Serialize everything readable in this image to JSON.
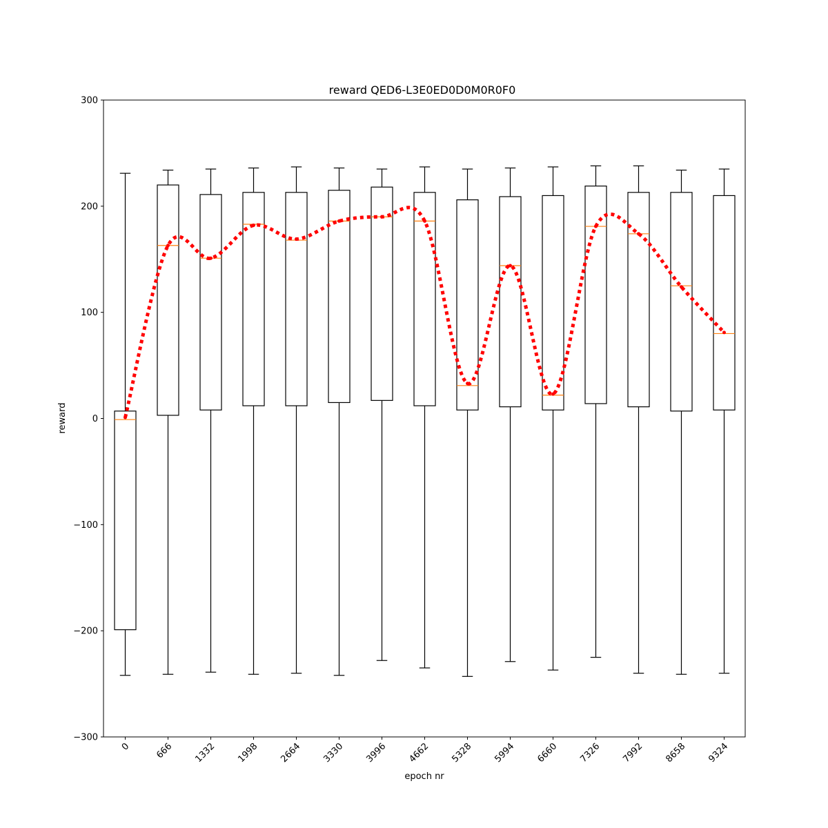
{
  "chart_data": {
    "type": "box",
    "title": "reward QED6-L3E0ED0D0M0R0F0",
    "xlabel": "epoch nr",
    "ylabel": "reward",
    "ylim": [
      -300,
      300
    ],
    "yticks": [
      -300,
      -200,
      -100,
      0,
      100,
      200,
      300
    ],
    "ytick_labels": [
      "−300",
      "−200",
      "−100",
      "0",
      "100",
      "200",
      "300"
    ],
    "categories": [
      "0",
      "666",
      "1332",
      "1998",
      "2664",
      "3330",
      "3996",
      "4662",
      "5328",
      "5994",
      "6660",
      "7326",
      "7992",
      "8658",
      "9324"
    ],
    "boxes": [
      {
        "whisker_low": -242,
        "q1": -199,
        "median": -1,
        "q3": 7,
        "whisker_high": 231
      },
      {
        "whisker_low": -241,
        "q1": 3,
        "median": 163,
        "q3": 220,
        "whisker_high": 234
      },
      {
        "whisker_low": -239,
        "q1": 8,
        "median": 151,
        "q3": 211,
        "whisker_high": 235
      },
      {
        "whisker_low": -241,
        "q1": 12,
        "median": 183,
        "q3": 213,
        "whisker_high": 236
      },
      {
        "whisker_low": -240,
        "q1": 12,
        "median": 168,
        "q3": 213,
        "whisker_high": 237
      },
      {
        "whisker_low": -242,
        "q1": 15,
        "median": 186,
        "q3": 215,
        "whisker_high": 236
      },
      {
        "whisker_low": -228,
        "q1": 17,
        "median": 190,
        "q3": 218,
        "whisker_high": 235
      },
      {
        "whisker_low": -235,
        "q1": 12,
        "median": 186,
        "q3": 213,
        "whisker_high": 237
      },
      {
        "whisker_low": -243,
        "q1": 8,
        "median": 31,
        "q3": 206,
        "whisker_high": 235
      },
      {
        "whisker_low": -229,
        "q1": 11,
        "median": 144,
        "q3": 209,
        "whisker_high": 236
      },
      {
        "whisker_low": -237,
        "q1": 8,
        "median": 22,
        "q3": 210,
        "whisker_high": 237
      },
      {
        "whisker_low": -225,
        "q1": 14,
        "median": 181,
        "q3": 219,
        "whisker_high": 238
      },
      {
        "whisker_low": -240,
        "q1": 11,
        "median": 174,
        "q3": 213,
        "whisker_high": 238
      },
      {
        "whisker_low": -241,
        "q1": 7,
        "median": 125,
        "q3": 213,
        "whisker_high": 234
      },
      {
        "whisker_low": -240,
        "q1": 8,
        "median": 80,
        "q3": 210,
        "whisker_high": 235
      }
    ],
    "mean_line": [
      1,
      163,
      151,
      182,
      169,
      186,
      190,
      186,
      33,
      144,
      23,
      181,
      174,
      124,
      81
    ],
    "colors": {
      "box": "#000000",
      "median": "#ff7f0e",
      "mean_line": "#ff0000"
    },
    "grid": false
  }
}
